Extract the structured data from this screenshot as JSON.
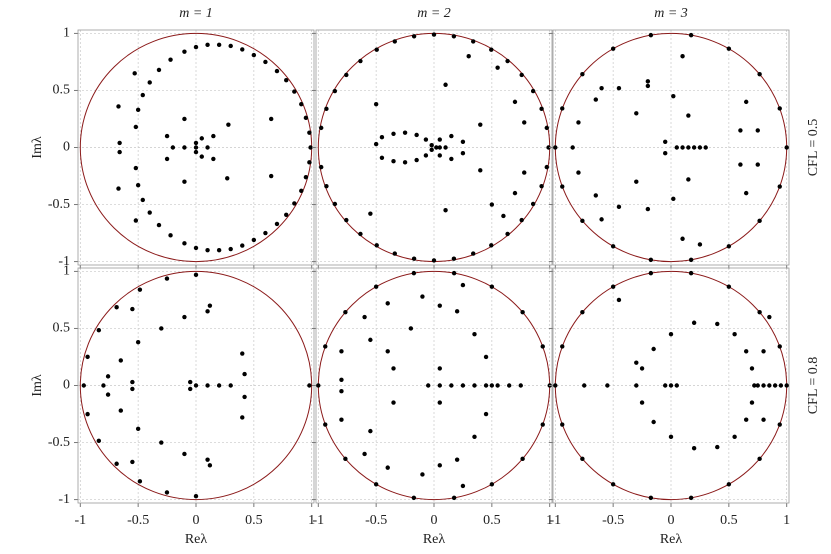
{
  "chart_data": [
    {
      "type": "scatter",
      "title": "m = 1",
      "ylabel": "Imλ",
      "color": "#000000",
      "unit_circle": {
        "radius": 1,
        "color": "#8b1a1a"
      },
      "xlim": [
        -1.02,
        1.02
      ],
      "ylim": [
        -1.03,
        1.03
      ],
      "xticks": [
        -1,
        -0.5,
        0,
        0.5,
        1
      ],
      "yticks": [
        -1,
        -0.5,
        0,
        0.5,
        1
      ],
      "grid": true,
      "x": [
        -0.52,
        -0.5,
        -0.46,
        -0.4,
        -0.32,
        -0.22,
        -0.1,
        0,
        0.1,
        0.2,
        0.3,
        0.4,
        0.5,
        0.6,
        0.7,
        0.78,
        0.85,
        0.91,
        0.95,
        0.98,
        0.99,
        -0.52,
        -0.5,
        -0.46,
        -0.4,
        -0.32,
        -0.22,
        -0.1,
        0,
        0.1,
        0.2,
        0.3,
        0.4,
        0.5,
        0.6,
        0.7,
        0.78,
        0.85,
        0.91,
        0.95,
        0.98,
        -0.67,
        -0.67,
        -0.66,
        -0.66,
        -0.53,
        -0.52,
        -0.25,
        -0.25,
        -0.2,
        -0.1,
        0,
        0.1,
        0.05,
        0.05,
        0,
        0,
        -0.1,
        -0.1,
        0.15,
        0.15,
        0.65,
        0.65,
        0.27,
        0.28
      ],
      "values": [
        0.18,
        0.33,
        0.46,
        0.57,
        0.68,
        0.77,
        0.84,
        0.88,
        0.9,
        0.9,
        0.89,
        0.86,
        0.81,
        0.75,
        0.67,
        0.59,
        0.49,
        0.38,
        0.26,
        0.13,
        0,
        -0.18,
        -0.33,
        -0.46,
        -0.57,
        -0.68,
        -0.77,
        -0.84,
        -0.88,
        -0.9,
        -0.9,
        -0.89,
        -0.86,
        -0.81,
        -0.75,
        -0.67,
        -0.59,
        -0.49,
        -0.38,
        -0.26,
        -0.13,
        0.36,
        -0.36,
        0.04,
        -0.04,
        0.65,
        -0.64,
        0.1,
        -0.1,
        0,
        0,
        0,
        0,
        0.08,
        -0.08,
        0.04,
        -0.04,
        0.25,
        -0.3,
        0.1,
        -0.1,
        0.25,
        -0.25,
        -0.27,
        0.2
      ]
    },
    {
      "type": "scatter",
      "title": "m = 2",
      "color": "#000000",
      "unit_circle": {
        "radius": 1,
        "color": "#8b1a1a"
      },
      "xlim": [
        -1.02,
        1.02
      ],
      "ylim": [
        -1.03,
        1.03
      ],
      "xticks": [
        -1,
        -0.5,
        0,
        0.5,
        1
      ],
      "yticks": [
        -1,
        -0.5,
        0,
        0.5,
        1
      ],
      "grid": true,
      "x": [
        -0.975,
        -0.93,
        -0.857,
        -0.758,
        -0.636,
        -0.495,
        -0.339,
        -0.172,
        0,
        0.172,
        0.339,
        0.495,
        0.636,
        0.758,
        0.857,
        0.93,
        0.975,
        0.99,
        -0.975,
        -0.93,
        -0.857,
        -0.758,
        -0.636,
        -0.495,
        -0.339,
        -0.172,
        0,
        0.172,
        0.339,
        0.495,
        0.636,
        0.758,
        0.857,
        0.93,
        0.975,
        -0.5,
        -0.45,
        -0.35,
        -0.25,
        -0.15,
        -0.07,
        -0.02,
        -0.45,
        -0.35,
        -0.25,
        -0.15,
        -0.07,
        -0.02,
        0.02,
        0.05,
        0.1,
        0.05,
        0.05,
        0.15,
        0.15,
        0.1,
        0.1,
        -0.5,
        -0.55,
        0.3,
        0.4,
        0.4,
        0.7,
        0.7,
        0.78,
        0.78,
        0.55,
        0.5,
        0.6,
        0.25,
        0.25
      ],
      "values": [
        0.172,
        0.339,
        0.495,
        0.636,
        0.758,
        0.857,
        0.93,
        0.975,
        0.99,
        0.975,
        0.93,
        0.857,
        0.758,
        0.636,
        0.495,
        0.339,
        0.172,
        0,
        -0.172,
        -0.339,
        -0.495,
        -0.636,
        -0.758,
        -0.857,
        -0.93,
        -0.975,
        -0.99,
        -0.975,
        -0.93,
        -0.857,
        -0.758,
        -0.636,
        -0.495,
        -0.339,
        -0.172,
        0.03,
        0.09,
        0.12,
        0.13,
        0.11,
        0.07,
        0.02,
        -0.09,
        -0.12,
        -0.13,
        -0.11,
        -0.07,
        -0.02,
        0,
        0,
        0,
        0.07,
        -0.07,
        0.1,
        -0.1,
        0.55,
        -0.55,
        0.38,
        -0.58,
        0.8,
        0.2,
        -0.2,
        0.4,
        -0.4,
        0.22,
        -0.22,
        0.7,
        -0.5,
        -0.6,
        -0.05,
        0.05
      ]
    },
    {
      "type": "scatter",
      "title": "m = 3",
      "row_label": "CFL = 0.5",
      "color": "#000000",
      "unit_circle": {
        "radius": 1,
        "color": "#8b1a1a"
      },
      "xlim": [
        -1.02,
        1.02
      ],
      "ylim": [
        -1.03,
        1.03
      ],
      "xticks": [
        -1,
        -0.5,
        0,
        0.5,
        1
      ],
      "yticks": [
        -1,
        -0.5,
        0,
        0.5,
        1
      ],
      "grid": true,
      "x": [
        1,
        0.94,
        0.766,
        0.5,
        0.174,
        -0.174,
        -0.5,
        -0.766,
        -0.94,
        -1,
        -0.94,
        -0.766,
        -0.5,
        -0.174,
        0.174,
        0.5,
        0.766,
        0.94,
        0.2,
        0.15,
        0.02,
        -0.2,
        -0.45,
        -0.65,
        -0.8,
        -0.85,
        0.15,
        0.02,
        -0.2,
        -0.45,
        -0.65,
        -0.8,
        0.05,
        0.1,
        0.15,
        0.25,
        0.3,
        -0.6,
        -0.2,
        -0.3,
        -0.3,
        0.1,
        0.1,
        0.75,
        0.75,
        0.6,
        0.6,
        0.65,
        0.65,
        0.25,
        -0.6,
        -0.05,
        -0.05
      ],
      "values": [
        0,
        0.342,
        0.643,
        0.866,
        0.985,
        0.985,
        0.866,
        0.643,
        0.342,
        0,
        -0.342,
        -0.643,
        -0.866,
        -0.985,
        -0.985,
        -0.866,
        -0.643,
        -0.342,
        0,
        0.28,
        0.45,
        0.54,
        0.52,
        0.42,
        0.22,
        0,
        -0.28,
        -0.45,
        -0.54,
        -0.52,
        -0.42,
        -0.22,
        0,
        0,
        0,
        0,
        0,
        0.52,
        0.58,
        0.3,
        -0.3,
        0.8,
        -0.8,
        0.15,
        -0.15,
        0.15,
        -0.15,
        0.4,
        -0.4,
        -0.85,
        -0.63,
        0.05,
        -0.05
      ]
    },
    {
      "type": "scatter",
      "xlabel": "Reλ",
      "ylabel": "Imλ",
      "color": "#000000",
      "unit_circle": {
        "radius": 1,
        "color": "#8b1a1a"
      },
      "xlim": [
        -1.02,
        1.02
      ],
      "ylim": [
        -1.03,
        1.03
      ],
      "xticks": [
        -1,
        -0.5,
        0,
        0.5,
        1
      ],
      "yticks": [
        -1,
        -0.5,
        0,
        0.5,
        1
      ],
      "grid": true,
      "x": [
        0,
        -0.251,
        -0.485,
        -0.686,
        -0.84,
        -0.937,
        -0.97,
        -0.937,
        -0.84,
        -0.686,
        -0.485,
        -0.251,
        0,
        0.1,
        -0.1,
        -0.3,
        -0.5,
        -0.65,
        -0.76,
        -0.8,
        0.1,
        -0.1,
        -0.3,
        -0.5,
        -0.65,
        -0.76,
        0,
        0.1,
        0.2,
        0.3,
        -0.55,
        -0.55,
        0.12,
        0.12,
        -0.55,
        -0.55,
        0.4,
        0.4,
        0.42,
        0.42,
        0.98,
        -0.05,
        -0.05
      ],
      "values": [
        0.97,
        0.937,
        0.84,
        0.686,
        0.485,
        0.251,
        0,
        -0.251,
        -0.485,
        -0.686,
        -0.84,
        -0.937,
        -0.97,
        0.65,
        0.6,
        0.5,
        0.38,
        0.22,
        0.08,
        0,
        -0.65,
        -0.6,
        -0.5,
        -0.38,
        -0.22,
        -0.08,
        0,
        0,
        0,
        0,
        0.67,
        -0.67,
        0.7,
        -0.7,
        0.03,
        -0.03,
        0.28,
        -0.28,
        0.1,
        -0.1,
        0,
        0.03,
        -0.03
      ]
    },
    {
      "type": "scatter",
      "xlabel": "Reλ",
      "color": "#000000",
      "unit_circle": {
        "radius": 1,
        "color": "#8b1a1a"
      },
      "xlim": [
        -1.02,
        1.02
      ],
      "ylim": [
        -1.03,
        1.03
      ],
      "xticks": [
        -1,
        -0.5,
        0,
        0.5,
        1
      ],
      "yticks": [
        -1,
        -0.5,
        0,
        0.5,
        1
      ],
      "grid": true,
      "x": [
        1,
        0.94,
        0.766,
        0.5,
        0.174,
        -0.174,
        -0.5,
        -0.766,
        -0.94,
        -1,
        -0.94,
        -0.766,
        -0.5,
        -0.174,
        0.174,
        0.5,
        0.766,
        0.94,
        0.25,
        0.2,
        0.35,
        0.45,
        0.5,
        0.45,
        0.35,
        0.2,
        0.25,
        -0.8,
        -0.6,
        -0.4,
        -0.1,
        0.05,
        -0.8,
        -0.6,
        -0.4,
        -0.1,
        0.05,
        -0.05,
        0.05,
        0.15,
        0.25,
        0.35,
        0.45,
        0.55,
        0.65,
        0.75,
        -0.55,
        -0.55,
        -0.35,
        -0.35,
        -0.4,
        -0.2,
        0.05,
        0.05,
        -0.8,
        -0.8
      ],
      "values": [
        0,
        0.342,
        0.643,
        0.866,
        0.985,
        0.985,
        0.866,
        0.643,
        0.342,
        0,
        -0.342,
        -0.643,
        -0.866,
        -0.985,
        -0.985,
        -0.866,
        -0.643,
        -0.342,
        0.88,
        0.65,
        0.45,
        0.25,
        0,
        -0.25,
        -0.45,
        -0.65,
        -0.88,
        0.3,
        0.6,
        0.72,
        0.78,
        0.7,
        -0.3,
        -0.6,
        -0.72,
        -0.78,
        -0.7,
        0,
        0,
        0,
        0,
        0,
        0,
        0,
        0,
        0,
        0.4,
        -0.4,
        0.15,
        -0.15,
        0.3,
        0.5,
        0.15,
        -0.15,
        0.05,
        -0.05
      ]
    },
    {
      "type": "scatter",
      "xlabel": "Reλ",
      "row_label": "CFL = 0.8",
      "color": "#000000",
      "unit_circle": {
        "radius": 1,
        "color": "#8b1a1a"
      },
      "xlim": [
        -1.02,
        1.02
      ],
      "ylim": [
        -1.03,
        1.03
      ],
      "xticks": [
        -1,
        -0.5,
        0,
        0.5,
        1
      ],
      "yticks": [
        -1,
        -0.5,
        0,
        0.5,
        1
      ],
      "grid": true,
      "x": [
        1,
        0.94,
        0.766,
        0.5,
        0.174,
        -0.174,
        -0.5,
        -0.766,
        -0.94,
        -1,
        -0.94,
        -0.766,
        -0.5,
        -0.174,
        0.174,
        0.5,
        0.766,
        0.94,
        -0.3,
        -0.25,
        -0.15,
        0,
        0.2,
        0.4,
        0.55,
        0.65,
        0.7,
        0.72,
        -0.25,
        -0.15,
        0,
        0.2,
        0.4,
        0.55,
        0.65,
        0.7,
        0.75,
        0.8,
        0.85,
        0.9,
        0.95,
        -0.05,
        0,
        0.05,
        0.8,
        0.8,
        0.85,
        -0.75,
        -0.55,
        -0.45,
        -0.3
      ],
      "values": [
        0,
        0.342,
        0.643,
        0.866,
        0.985,
        0.985,
        0.866,
        0.643,
        0.342,
        0,
        -0.342,
        -0.643,
        -0.866,
        -0.985,
        -0.985,
        -0.866,
        -0.643,
        -0.342,
        0,
        0.15,
        0.32,
        0.45,
        0.55,
        0.54,
        0.45,
        0.3,
        0.15,
        0,
        -0.15,
        -0.32,
        -0.45,
        -0.55,
        -0.54,
        -0.45,
        -0.3,
        -0.15,
        0,
        0,
        0,
        0,
        0,
        0,
        0,
        0,
        0.3,
        -0.3,
        0.6,
        0,
        0,
        0.75,
        0.2
      ]
    }
  ]
}
